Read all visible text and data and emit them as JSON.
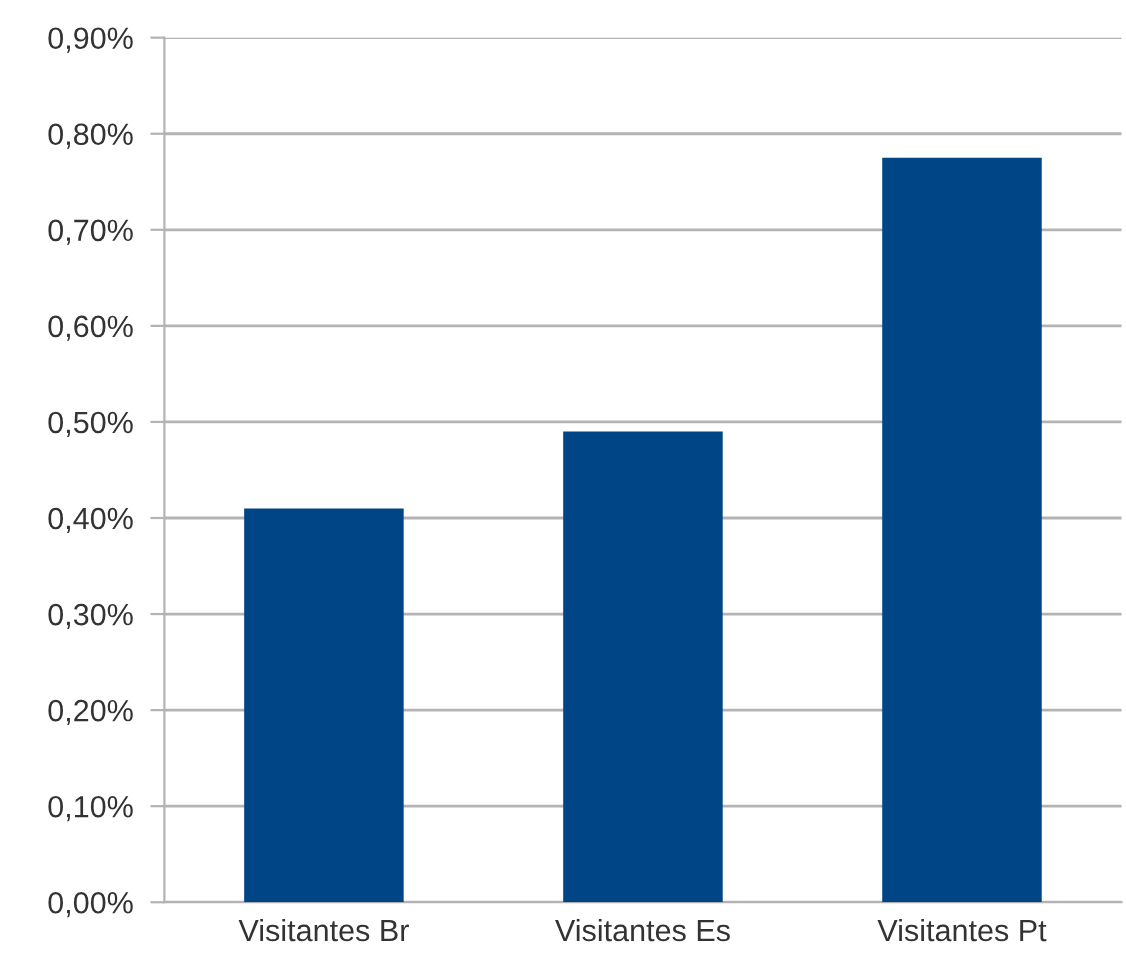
{
  "chart_data": {
    "type": "bar",
    "categories": [
      "Visitantes Br",
      "Visitantes Es",
      "Visitantes Pt"
    ],
    "values": [
      0.41,
      0.49,
      0.775
    ],
    "color": "#004586",
    "ylim": [
      0,
      0.9
    ],
    "yticks": [
      {
        "value": 0,
        "label": "0,00%"
      },
      {
        "value": 0.1,
        "label": "0,10%"
      },
      {
        "value": 0.2,
        "label": "0,20%"
      },
      {
        "value": 0.3,
        "label": "0,30%"
      },
      {
        "value": 0.4,
        "label": "0,40%"
      },
      {
        "value": 0.5,
        "label": "0,50%"
      },
      {
        "value": 0.6,
        "label": "0,60%"
      },
      {
        "value": 0.7,
        "label": "0,70%"
      },
      {
        "value": 0.8,
        "label": "0,80%"
      },
      {
        "value": 0.9,
        "label": "0,90%"
      }
    ],
    "grid": "y"
  }
}
